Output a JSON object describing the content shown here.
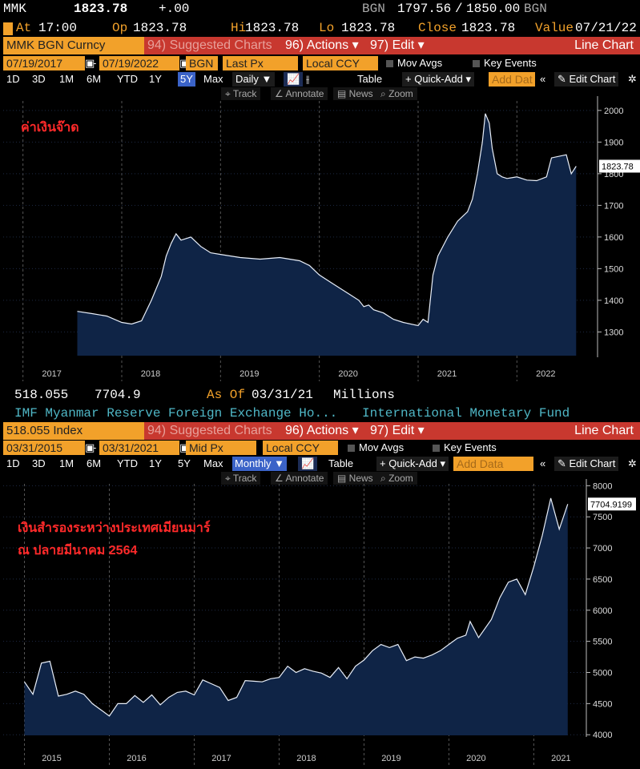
{
  "top": {
    "ticker": "MMK",
    "last": "1823.78",
    "change": "+.00",
    "bid_src": "BGN",
    "bid": "1797.56",
    "ask": "1850.00",
    "ask_src": "BGN",
    "at_label": "At",
    "at_time": "17:00",
    "op_label": "Op",
    "op": "1823.78",
    "hi_label": "Hi",
    "hi": "1823.78",
    "lo_label": "Lo",
    "lo": "1823.78",
    "close_label": "Close",
    "close": "1823.78",
    "value_label": "Value",
    "value_date": "07/21/22",
    "security": "MMK BGN Curncy",
    "suggested": "94) Suggested Charts",
    "actions": "96) Actions ▾",
    "edit": "97) Edit ▾",
    "chart_type": "Line Chart",
    "date_from": "07/19/2017",
    "date_to": "07/19/2022",
    "source": "BGN",
    "field": "Last Px",
    "ccy": "Local CCY",
    "mov_avgs": "Mov Avgs",
    "key_events": "Key Events",
    "periods": [
      "1D",
      "3D",
      "1M",
      "6M",
      "YTD",
      "1Y",
      "5Y",
      "Max"
    ],
    "selected_period": "5Y",
    "frequency": "Daily ▼",
    "table": "Table",
    "quick_add": "+ Quick-Add ▾",
    "add_data": "Add Dat",
    "edit_chart": "Edit Chart",
    "tools": [
      "Track",
      "Annotate",
      "News",
      "Zoom"
    ],
    "annotation": "ค่าเงินจ๊าด"
  },
  "bottom": {
    "last": "518.055",
    "value": "7704.9",
    "as_of_label": "As Of",
    "as_of": "03/31/21",
    "units": "Millions",
    "name": "IMF Myanmar Reserve Foreign Exchange Ho...",
    "publisher": "International Monetary Fund",
    "security": "518.055 Index",
    "suggested": "94) Suggested Charts",
    "actions": "96) Actions ▾",
    "edit": "97) Edit ▾",
    "chart_type": "Line Chart",
    "date_from": "03/31/2015",
    "date_to": "03/31/2021",
    "field": "Mid Px",
    "ccy": "Local CCY",
    "mov_avgs": "Mov Avgs",
    "key_events": "Key Events",
    "periods": [
      "1D",
      "3D",
      "1M",
      "6M",
      "YTD",
      "1Y",
      "5Y",
      "Max"
    ],
    "frequency": "Monthly ▼",
    "table": "Table",
    "quick_add": "+ Quick-Add ▾",
    "add_data": "Add Data",
    "edit_chart": "Edit Chart",
    "tools": [
      "Track",
      "Annotate",
      "News",
      "Zoom"
    ],
    "annotation_line1": "เงินสำรองระหว่างประเทศเมียนมาร์",
    "annotation_line2": "ณ ปลายมีนาคม 2564"
  },
  "colors": {
    "fill": "#0f2446",
    "line": "#e8eef8",
    "accent_orange": "#f2a12a",
    "bar_red": "#c8382f",
    "annotation_red": "#ff2a2a"
  },
  "chart_data": [
    {
      "type": "area",
      "series": [
        {
          "name": "MMK BGN Curncy",
          "x_unit": "year",
          "points": [
            [
              2017.55,
              1365
            ],
            [
              2017.7,
              1358
            ],
            [
              2017.85,
              1350
            ],
            [
              2018.0,
              1330
            ],
            [
              2018.1,
              1325
            ],
            [
              2018.2,
              1335
            ],
            [
              2018.3,
              1400
            ],
            [
              2018.4,
              1475
            ],
            [
              2018.45,
              1540
            ],
            [
              2018.5,
              1580
            ],
            [
              2018.55,
              1610
            ],
            [
              2018.6,
              1590
            ],
            [
              2018.7,
              1600
            ],
            [
              2018.8,
              1570
            ],
            [
              2018.9,
              1550
            ],
            [
              2019.0,
              1545
            ],
            [
              2019.2,
              1535
            ],
            [
              2019.4,
              1530
            ],
            [
              2019.6,
              1535
            ],
            [
              2019.8,
              1525
            ],
            [
              2019.9,
              1510
            ],
            [
              2020.0,
              1480
            ],
            [
              2020.1,
              1460
            ],
            [
              2020.2,
              1440
            ],
            [
              2020.3,
              1420
            ],
            [
              2020.4,
              1400
            ],
            [
              2020.45,
              1380
            ],
            [
              2020.5,
              1385
            ],
            [
              2020.55,
              1370
            ],
            [
              2020.65,
              1360
            ],
            [
              2020.75,
              1340
            ],
            [
              2020.85,
              1330
            ],
            [
              2021.0,
              1320
            ],
            [
              2021.05,
              1340
            ],
            [
              2021.1,
              1330
            ],
            [
              2021.15,
              1480
            ],
            [
              2021.2,
              1540
            ],
            [
              2021.3,
              1600
            ],
            [
              2021.4,
              1650
            ],
            [
              2021.5,
              1680
            ],
            [
              2021.55,
              1720
            ],
            [
              2021.6,
              1800
            ],
            [
              2021.65,
              1900
            ],
            [
              2021.68,
              1990
            ],
            [
              2021.72,
              1960
            ],
            [
              2021.75,
              1880
            ],
            [
              2021.8,
              1800
            ],
            [
              2021.85,
              1790
            ],
            [
              2021.9,
              1785
            ],
            [
              2022.0,
              1790
            ],
            [
              2022.1,
              1780
            ],
            [
              2022.2,
              1778
            ],
            [
              2022.3,
              1790
            ],
            [
              2022.35,
              1850
            ],
            [
              2022.5,
              1860
            ],
            [
              2022.55,
              1800
            ],
            [
              2022.6,
              1823.78
            ]
          ]
        }
      ],
      "x_ticks": [
        "2017",
        "2018",
        "2019",
        "2020",
        "2021",
        "2022"
      ],
      "x_tick_values": [
        2017,
        2018,
        2019,
        2020,
        2021,
        2022
      ],
      "y_ticks": [
        1300,
        1400,
        1500,
        1600,
        1700,
        1800,
        1900,
        2000
      ],
      "ylim": [
        1225,
        2030
      ],
      "xlim": [
        2016.8,
        2022.8
      ],
      "last_value": "1823.78"
    },
    {
      "type": "area",
      "series": [
        {
          "name": "518.055 Index",
          "x_unit": "year",
          "points": [
            [
              2015.0,
              4850
            ],
            [
              2015.1,
              4650
            ],
            [
              2015.2,
              5150
            ],
            [
              2015.3,
              5180
            ],
            [
              2015.4,
              4620
            ],
            [
              2015.5,
              4650
            ],
            [
              2015.6,
              4700
            ],
            [
              2015.7,
              4650
            ],
            [
              2015.8,
              4500
            ],
            [
              2015.9,
              4400
            ],
            [
              2016.0,
              4300
            ],
            [
              2016.1,
              4500
            ],
            [
              2016.2,
              4500
            ],
            [
              2016.3,
              4630
            ],
            [
              2016.4,
              4520
            ],
            [
              2016.5,
              4640
            ],
            [
              2016.6,
              4480
            ],
            [
              2016.7,
              4600
            ],
            [
              2016.8,
              4680
            ],
            [
              2016.9,
              4700
            ],
            [
              2017.0,
              4640
            ],
            [
              2017.1,
              4880
            ],
            [
              2017.2,
              4820
            ],
            [
              2017.3,
              4760
            ],
            [
              2017.4,
              4550
            ],
            [
              2017.5,
              4600
            ],
            [
              2017.6,
              4870
            ],
            [
              2017.7,
              4860
            ],
            [
              2017.8,
              4850
            ],
            [
              2017.9,
              4900
            ],
            [
              2018.0,
              4920
            ],
            [
              2018.1,
              5100
            ],
            [
              2018.2,
              5000
            ],
            [
              2018.3,
              5060
            ],
            [
              2018.4,
              5020
            ],
            [
              2018.5,
              4990
            ],
            [
              2018.6,
              4920
            ],
            [
              2018.7,
              5080
            ],
            [
              2018.8,
              4900
            ],
            [
              2018.9,
              5100
            ],
            [
              2019.0,
              5200
            ],
            [
              2019.1,
              5350
            ],
            [
              2019.2,
              5450
            ],
            [
              2019.3,
              5400
            ],
            [
              2019.4,
              5450
            ],
            [
              2019.5,
              5190
            ],
            [
              2019.6,
              5250
            ],
            [
              2019.7,
              5230
            ],
            [
              2019.8,
              5280
            ],
            [
              2019.9,
              5350
            ],
            [
              2020.0,
              5450
            ],
            [
              2020.1,
              5550
            ],
            [
              2020.2,
              5600
            ],
            [
              2020.25,
              5820
            ],
            [
              2020.35,
              5560
            ],
            [
              2020.5,
              5850
            ],
            [
              2020.6,
              6200
            ],
            [
              2020.7,
              6450
            ],
            [
              2020.8,
              6500
            ],
            [
              2020.9,
              6250
            ],
            [
              2021.0,
              6700
            ],
            [
              2021.1,
              7200
            ],
            [
              2021.2,
              7800
            ],
            [
              2021.3,
              7300
            ],
            [
              2021.4,
              7704.92
            ]
          ]
        }
      ],
      "x_ticks": [
        "2015",
        "2016",
        "2017",
        "2018",
        "2019",
        "2020",
        "2021"
      ],
      "x_tick_values": [
        2015,
        2016,
        2017,
        2018,
        2019,
        2020,
        2021
      ],
      "y_ticks": [
        4000,
        4500,
        5000,
        5500,
        6000,
        6500,
        7000,
        7500,
        8000
      ],
      "ylim": [
        3990,
        8030
      ],
      "xlim": [
        2014.75,
        2021.6
      ],
      "last_value": "7704.9199"
    }
  ]
}
